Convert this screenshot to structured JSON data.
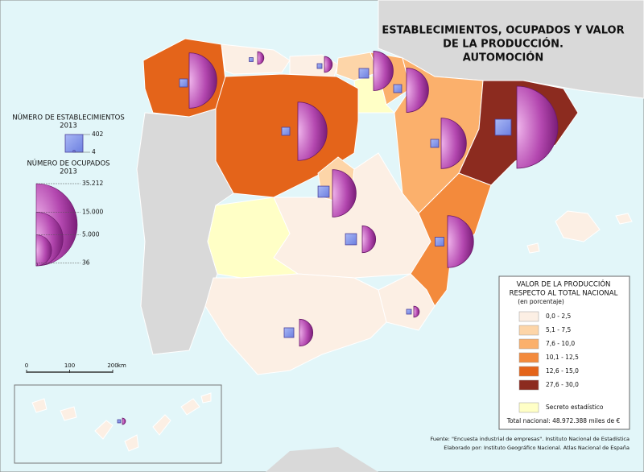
{
  "title": [
    "ESTABLECIMIENTOS, OCUPADOS Y VALOR",
    "DE LA PRODUCCIÓN.",
    "AUTOMOCIÓN"
  ],
  "legend_establecimientos": {
    "title": "NÚMERO DE ESTABLECIMIENTOS",
    "year": "2013",
    "values": [
      402,
      4
    ]
  },
  "legend_ocupados": {
    "title": "NÚMERO DE OCUPADOS",
    "year": "2013",
    "values": [
      {
        "value": 35212,
        "label": "35.212"
      },
      {
        "value": 15000,
        "label": "15.000"
      },
      {
        "value": 5000,
        "label": "5.000"
      },
      36
    ]
  },
  "scale_bar": {
    "ticks": [
      0,
      100,
      200
    ],
    "unit": "km"
  },
  "legend_valor": {
    "title": [
      "VALOR DE LA PRODUCCIÓN",
      "RESPECTO AL TOTAL NACIONAL",
      "(en porcentaje)"
    ],
    "classes": [
      {
        "label": "0,0 - 2,5",
        "color": "#fcefe4"
      },
      {
        "label": "5,1 - 7,5",
        "color": "#fdd5a8"
      },
      {
        "label": "7,6 - 10,0",
        "color": "#fbb06c"
      },
      {
        "label": "10,1 - 12,5",
        "color": "#f38a3c"
      },
      {
        "label": "12,6 - 15,0",
        "color": "#e4641a"
      },
      {
        "label": "27,6 - 30,0",
        "color": "#8c2b1f"
      },
      {
        "label": "Secreto estadístico",
        "color": "#ffffc6"
      }
    ],
    "total": "Total nacional: 48.972.388 miles de €"
  },
  "regions": [
    {
      "class": 4,
      "establishments": 83,
      "employees": 16000
    },
    {
      "class": 0,
      "establishments": 20,
      "employees": 830
    },
    {
      "class": 0,
      "establishments": 30,
      "employees": 1300
    },
    {
      "class": 1,
      "establishments": 120,
      "employees": 8100
    },
    {
      "class": 2,
      "establishments": 83,
      "employees": 10200
    },
    {
      "class": 6,
      "establishments": null,
      "employees": null
    },
    {
      "class": 4,
      "establishments": 83,
      "employees": 17800
    },
    {
      "class": 2,
      "establishments": 83,
      "employees": 13300
    },
    {
      "class": 5,
      "establishments": 330,
      "employees": 35212
    },
    {
      "class": 1,
      "establishments": 160,
      "employees": 11700
    },
    {
      "class": 0,
      "establishments": 160,
      "employees": 3770
    },
    {
      "class": 6,
      "establishments": null,
      "employees": null
    },
    {
      "class": 3,
      "establishments": 100,
      "employees": 14100
    },
    {
      "class": 0,
      "establishments": 30,
      "employees": 640
    },
    {
      "class": 0,
      "establishments": 120,
      "employees": 3770
    },
    {
      "class": 0,
      "establishments": null,
      "employees": null
    },
    {
      "class": 0,
      "establishments": 13,
      "employees": 210
    }
  ],
  "source": [
    "Fuente: \"Encuesta industrial de empresas\". Instituto Nacional de Estadística",
    "Elaborado por: Instituto Geográfico Nacional. Atlas Nacional de España"
  ]
}
